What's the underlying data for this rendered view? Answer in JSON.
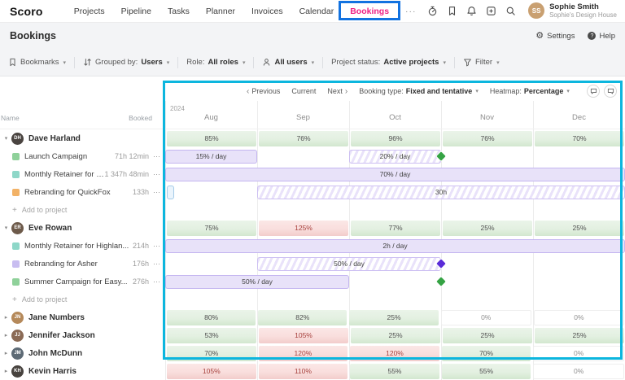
{
  "nav": {
    "logo": "Scoro",
    "items": [
      "Projects",
      "Pipeline",
      "Tasks",
      "Planner",
      "Invoices",
      "Calendar",
      "Bookings",
      "···"
    ],
    "active_item": "Bookings",
    "user": {
      "name": "Sophie Smith",
      "org": "Sophie's Design House",
      "initials": "SS"
    }
  },
  "page": {
    "title": "Bookings",
    "settings": "Settings",
    "help": "Help"
  },
  "toolbar": {
    "bookmarks": "Bookmarks",
    "grouped_by_label": "Grouped by:",
    "grouped_by_value": "Users",
    "role_label": "Role:",
    "role_value": "All roles",
    "all_users": "All users",
    "project_status_label": "Project status:",
    "project_status_value": "Active projects",
    "filter": "Filter"
  },
  "list_header": {
    "name": "Name",
    "booked": "Booked"
  },
  "heatmap": {
    "previous": "Previous",
    "current": "Current",
    "next": "Next",
    "booking_type_label": "Booking type:",
    "booking_type_value": "Fixed and tentative",
    "heatmap_label": "Heatmap:",
    "heatmap_value": "Percentage",
    "year": "2024",
    "months": [
      "Aug",
      "Sep",
      "Oct",
      "Nov",
      "Dec"
    ]
  },
  "glyphs": {
    "caret_down": "▾",
    "caret_right": "▸",
    "dropdown": "▾",
    "chevron_left": "‹",
    "chevron_right": "›",
    "dots": "⋯",
    "plus": "+",
    "help": "?",
    "gear": "⚙"
  },
  "colors": {
    "active_nav": "#ef1e83",
    "annotation_blue": "#1272e0",
    "annotation_cyan": "#0cb6de",
    "heat_green": "#dcebd9",
    "heat_red": "#f6d4d3",
    "booking_purple": "#e8e2f9",
    "milestone_green": "#35a344",
    "milestone_purple": "#5a2bd8"
  },
  "rows": [
    {
      "type": "user",
      "name": "Dave Harland",
      "initials": "DH",
      "avatar_color": "#4a4440",
      "expanded": true,
      "cells": [
        {
          "text": "85%",
          "level": "green"
        },
        {
          "text": "76%",
          "level": "green"
        },
        {
          "text": "96%",
          "level": "green"
        },
        {
          "text": "76%",
          "level": "green"
        },
        {
          "text": "70%",
          "level": "green"
        }
      ]
    },
    {
      "type": "project",
      "name": "Launch Campaign",
      "icon_color": "#8fd19a",
      "booked": "71h 12min",
      "bars": [
        {
          "label": "15% / day",
          "start": 0,
          "end": 20,
          "style": "solid"
        },
        {
          "label": "20% / day",
          "start": 40,
          "end": 60,
          "style": "hatched"
        }
      ],
      "diamonds": [
        {
          "pos": 60,
          "color": "#35a344"
        }
      ]
    },
    {
      "type": "project",
      "name": "Monthly Retainer for Highlan...",
      "icon_color": "#8ed7c8",
      "booked": "1 347h 48min",
      "bars": [
        {
          "label": "70% / day",
          "start": 0,
          "end": 100,
          "style": "solid"
        }
      ]
    },
    {
      "type": "project",
      "name": "Rebranding for QuickFox",
      "icon_color": "#f2b267",
      "booked": "133h",
      "bars": [
        {
          "label": "",
          "start": 0.4,
          "end": 2,
          "style": "stub"
        },
        {
          "label": "30h",
          "start": 20,
          "end": 100,
          "style": "hatched"
        }
      ]
    },
    {
      "type": "add",
      "label": "Add to project"
    },
    {
      "type": "user",
      "name": "Eve Rowan",
      "initials": "ER",
      "avatar_color": "#6d5a4a",
      "expanded": true,
      "cells": [
        {
          "text": "75%",
          "level": "green"
        },
        {
          "text": "125%",
          "level": "red"
        },
        {
          "text": "77%",
          "level": "green"
        },
        {
          "text": "25%",
          "level": "green"
        },
        {
          "text": "25%",
          "level": "green"
        }
      ]
    },
    {
      "type": "project",
      "name": "Monthly Retainer for Highlan...",
      "icon_color": "#8ed7c8",
      "booked": "214h",
      "bars": [
        {
          "label": "2h / day",
          "start": 0,
          "end": 100,
          "style": "solid"
        }
      ]
    },
    {
      "type": "project",
      "name": "Rebranding for Asher",
      "icon_color": "#c8bdf0",
      "booked": "176h",
      "bars": [
        {
          "label": "50% / day",
          "start": 20,
          "end": 60,
          "style": "hatched"
        }
      ],
      "diamonds": [
        {
          "pos": 60,
          "color": "#5a2bd8"
        }
      ]
    },
    {
      "type": "project",
      "name": "Summer Campaign for Easy...",
      "icon_color": "#8fd19a",
      "booked": "276h",
      "bars": [
        {
          "label": "50% / day",
          "start": 0,
          "end": 40,
          "style": "solid"
        }
      ],
      "diamonds": [
        {
          "pos": 60,
          "color": "#35a344"
        }
      ]
    },
    {
      "type": "add",
      "label": "Add to project"
    },
    {
      "type": "user",
      "name": "Jane Numbers",
      "initials": "JN",
      "avatar_color": "#b5895a",
      "expanded": false,
      "cells": [
        {
          "text": "80%",
          "level": "green"
        },
        {
          "text": "82%",
          "level": "green"
        },
        {
          "text": "25%",
          "level": "green"
        },
        {
          "text": "0%",
          "level": "zero"
        },
        {
          "text": "0%",
          "level": "zero"
        }
      ]
    },
    {
      "type": "user",
      "name": "Jennifer Jackson",
      "initials": "JJ",
      "avatar_color": "#8a6a55",
      "expanded": false,
      "cells": [
        {
          "text": "53%",
          "level": "green"
        },
        {
          "text": "105%",
          "level": "red"
        },
        {
          "text": "25%",
          "level": "green"
        },
        {
          "text": "25%",
          "level": "green"
        },
        {
          "text": "25%",
          "level": "green"
        }
      ]
    },
    {
      "type": "user",
      "name": "John McDunn",
      "initials": "JM",
      "avatar_color": "#5d6a75",
      "expanded": false,
      "cells": [
        {
          "text": "70%",
          "level": "green"
        },
        {
          "text": "120%",
          "level": "red"
        },
        {
          "text": "120%",
          "level": "red"
        },
        {
          "text": "70%",
          "level": "green"
        },
        {
          "text": "0%",
          "level": "zero"
        }
      ]
    },
    {
      "type": "user",
      "name": "Kevin Harris",
      "initials": "KH",
      "avatar_color": "#47423e",
      "expanded": false,
      "cells": [
        {
          "text": "105%",
          "level": "red"
        },
        {
          "text": "110%",
          "level": "red"
        },
        {
          "text": "55%",
          "level": "green"
        },
        {
          "text": "55%",
          "level": "green"
        },
        {
          "text": "0%",
          "level": "zero"
        }
      ]
    }
  ]
}
